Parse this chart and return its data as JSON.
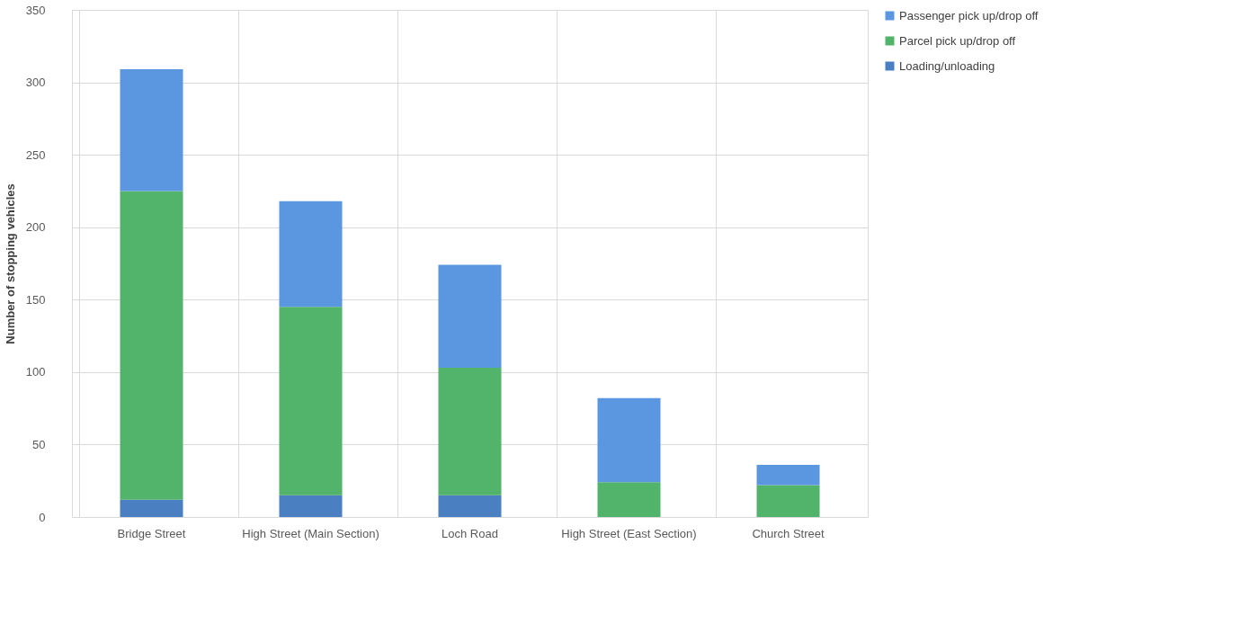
{
  "chart_data": {
    "type": "bar",
    "stacked": true,
    "ylabel": "Number  of stopping vehicles",
    "categories": [
      "Bridge Street",
      "High Street (Main Section)",
      "Loch Road",
      "High Street (East Section)",
      "Church Street"
    ],
    "series": [
      {
        "name": "Loading/unloading",
        "color": "#4a7fc1",
        "values": [
          12,
          15,
          15,
          0,
          0
        ]
      },
      {
        "name": "Parcel pick up/drop off",
        "color": "#52b36a",
        "values": [
          213,
          130,
          88,
          24,
          22
        ]
      },
      {
        "name": "Passenger pick up/drop off",
        "color": "#5b96e0",
        "values": [
          84,
          73,
          71,
          58,
          14
        ]
      }
    ],
    "ylim": [
      0,
      350
    ],
    "yticks": [
      0,
      50,
      100,
      150,
      200,
      250,
      300,
      350
    ],
    "grid": true,
    "legend": "right"
  }
}
